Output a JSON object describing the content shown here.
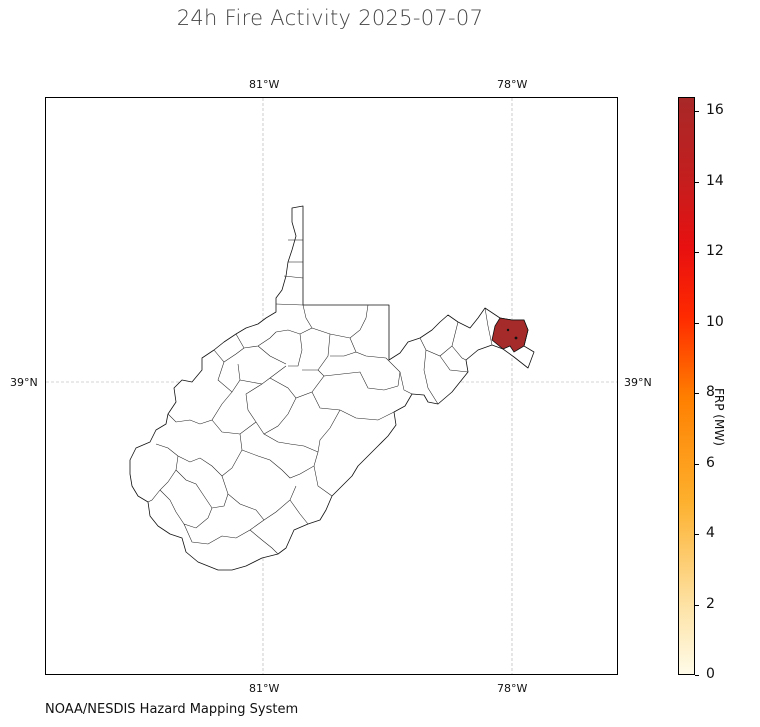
{
  "title": "24h Fire Activity 2025-07-07",
  "credit": "NOAA/NESDIS Hazard Mapping System",
  "map": {
    "graticule": {
      "lon_top": [
        "81°W",
        "78°W"
      ],
      "lon_bottom": [
        "81°W",
        "78°W"
      ],
      "lat_left": [
        "39°N"
      ],
      "lat_right": [
        "39°N"
      ]
    },
    "highlight_county_color": "#a52a2a",
    "region_outline_color": "#000000"
  },
  "colorbar": {
    "label": "FRP (MW)",
    "ticks": [
      "0",
      "2",
      "4",
      "6",
      "8",
      "10",
      "12",
      "14",
      "16"
    ],
    "range": [
      0,
      16.4
    ],
    "colors": [
      "#fffbe8",
      "#fdb02d",
      "#ff7f00",
      "#ff0000",
      "#a82828"
    ]
  }
}
